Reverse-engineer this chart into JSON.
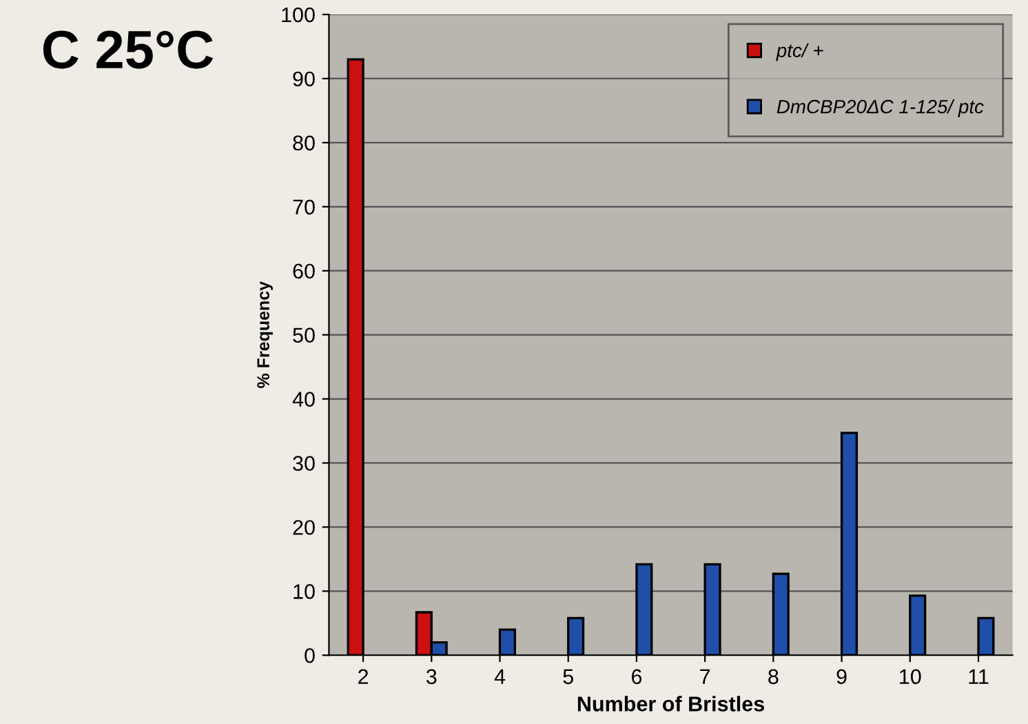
{
  "chart_data": {
    "type": "bar",
    "title": "C 25°C",
    "xlabel": "Number of Bristles",
    "ylabel": "% Frequency",
    "categories": [
      "2",
      "3",
      "4",
      "5",
      "6",
      "7",
      "8",
      "9",
      "10",
      "11"
    ],
    "series": [
      {
        "name": "ptc/ +",
        "color": "#cc1010",
        "values": [
          93,
          6.7,
          null,
          null,
          null,
          null,
          null,
          null,
          null,
          null
        ]
      },
      {
        "name": "DmCBP20ΔC 1-125/ ptc",
        "color": "#1f4fa8",
        "values": [
          null,
          2,
          4,
          5.8,
          14.2,
          14.2,
          12.7,
          34.7,
          9.3,
          5.8
        ]
      }
    ],
    "ylim": [
      0,
      100
    ],
    "yticks": [
      0,
      10,
      20,
      30,
      40,
      50,
      60,
      70,
      80,
      90,
      100
    ],
    "grid": "y",
    "legend": "top right"
  }
}
